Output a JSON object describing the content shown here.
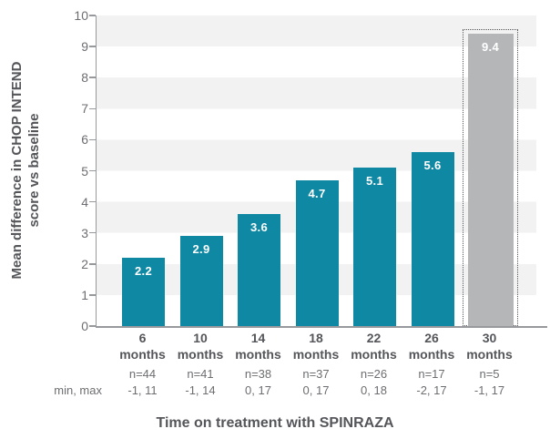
{
  "chart_data": {
    "type": "bar",
    "title": "",
    "xlabel": "Time on treatment with SPINRAZA",
    "ylabel_lines": [
      "Mean difference in CHOP INTEND",
      "score vs baseline"
    ],
    "ylabel": "Mean difference in CHOP INTEND score vs baseline",
    "ylim": [
      0,
      10
    ],
    "ytick_step": 1,
    "grid": "alternating horizontal bands, no gridlines",
    "legend": "none",
    "row_label": "min, max",
    "categories": [
      "6 months",
      "10 months",
      "14 months",
      "18 months",
      "22 months",
      "26 months",
      "30 months"
    ],
    "series": [
      {
        "name": "Mean difference in CHOP INTEND score vs baseline",
        "values": [
          2.2,
          2.9,
          3.6,
          4.7,
          5.1,
          5.6,
          9.4
        ]
      }
    ],
    "bars": [
      {
        "label": "6",
        "sublabel": "months",
        "value": 2.2,
        "n": "n=44",
        "min_max": "-1, 11",
        "highlight": false
      },
      {
        "label": "10",
        "sublabel": "months",
        "value": 2.9,
        "n": "n=41",
        "min_max": "-1, 14",
        "highlight": false
      },
      {
        "label": "14",
        "sublabel": "months",
        "value": 3.6,
        "n": "n=38",
        "min_max": "0, 17",
        "highlight": false
      },
      {
        "label": "18",
        "sublabel": "months",
        "value": 4.7,
        "n": "n=37",
        "min_max": "0, 17",
        "highlight": false
      },
      {
        "label": "22",
        "sublabel": "months",
        "value": 5.1,
        "n": "n=26",
        "min_max": "0, 18",
        "highlight": false
      },
      {
        "label": "26",
        "sublabel": "months",
        "value": 5.6,
        "n": "n=17",
        "min_max": "-2, 17",
        "highlight": false
      },
      {
        "label": "30",
        "sublabel": "months",
        "value": 9.4,
        "n": "n=5",
        "min_max": "-1, 17",
        "highlight": true
      }
    ],
    "colors": {
      "bar": "#0f88a3",
      "highlight_bar": "#b4b6b8",
      "highlight_outline": "#55565a",
      "stripe": "#f2f2f3",
      "band_alt": "#ffffff",
      "axis": "#97999c",
      "text_dark": "#55565a",
      "text_mid": "#6d6e71",
      "value_label": "#ffffff"
    }
  }
}
